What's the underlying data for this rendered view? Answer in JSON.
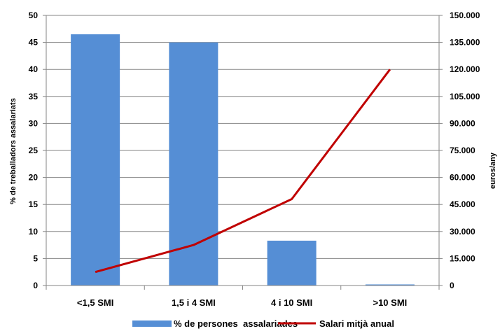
{
  "chart_data": {
    "type": "bar",
    "title": "",
    "categories": [
      "<1,5 SMI",
      "1,5 i 4 SMI",
      "4 i 10 SMI",
      ">10 SMI"
    ],
    "series": [
      {
        "name": "% de persones  assalariades",
        "type": "bar",
        "axis": "left",
        "color": "#558ED5",
        "values": [
          46.5,
          45.0,
          8.3,
          0.2
        ]
      },
      {
        "name": "Salari mitjà anual",
        "type": "line",
        "axis": "right",
        "color": "#C00000",
        "values": [
          7500,
          22500,
          48000,
          120000
        ]
      }
    ],
    "ylabel": "% de treballadors assalariats",
    "y2label": "euros/any",
    "ylim": [
      0,
      50
    ],
    "y2lim": [
      0,
      150000
    ],
    "yticks": [
      "0",
      "5",
      "10",
      "15",
      "20",
      "25",
      "30",
      "35",
      "40",
      "45",
      "50"
    ],
    "y2ticks": [
      "0",
      "15.000",
      "30.000",
      "45.000",
      "60.000",
      "75.000",
      "90.000",
      "105.000",
      "120.000",
      "135.000",
      "150.000"
    ],
    "grid": true,
    "legend": "bottom"
  }
}
